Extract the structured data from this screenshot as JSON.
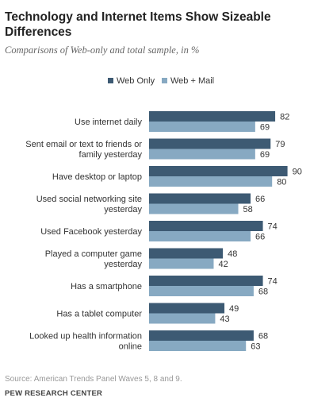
{
  "title": "Technology and Internet Items Show Sizeable Differences",
  "subtitle": "Comparisons of Web-only and total sample, in %",
  "source": "Source: American Trends Panel Waves 5, 8 and 9.",
  "org": "PEW RESEARCH CENTER",
  "chart_data": {
    "type": "bar",
    "orientation": "horizontal",
    "categories": [
      [
        "Use internet daily"
      ],
      [
        "Sent email or text to friends or",
        "family yesterday"
      ],
      [
        "Have desktop or laptop"
      ],
      [
        "Used social networking site",
        "yesterday"
      ],
      [
        "Used Facebook yesterday"
      ],
      [
        "Played a computer game",
        "yesterday"
      ],
      [
        "Has a smartphone"
      ],
      [
        "Has a tablet computer"
      ],
      [
        "Looked up health information",
        "online"
      ]
    ],
    "series": [
      {
        "name": "Web Only",
        "color": "#3d5a73",
        "values": [
          82,
          79,
          90,
          66,
          74,
          48,
          74,
          49,
          68
        ]
      },
      {
        "name": "Web + Mail",
        "color": "#87a9c2",
        "values": [
          69,
          69,
          80,
          58,
          66,
          42,
          68,
          43,
          63
        ]
      }
    ],
    "legend": "top-center",
    "xlim": [
      0,
      100
    ],
    "grid": false
  }
}
